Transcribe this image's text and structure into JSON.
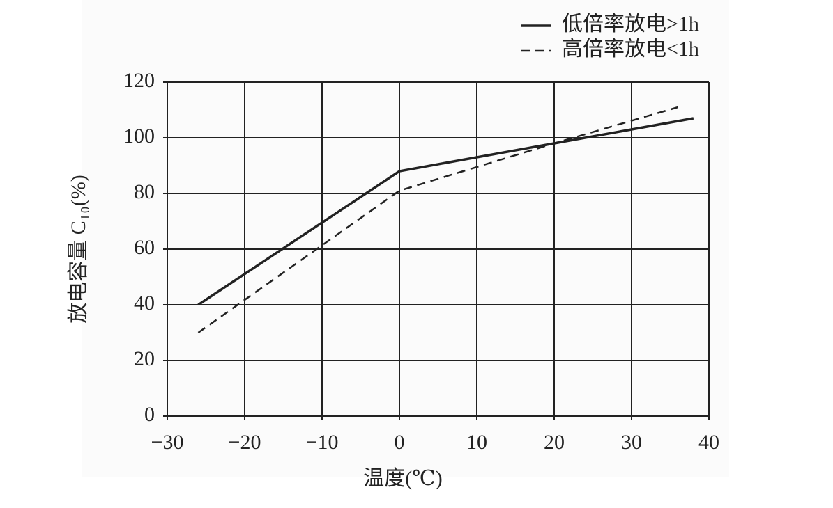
{
  "chart_data": {
    "type": "line",
    "xlabel": "温度(℃)",
    "ylabel": "放电容量 C₁₀(%)",
    "series": [
      {
        "name": "低倍率放电>1h",
        "color": "#222222",
        "dash": "solid",
        "x": [
          -26,
          0,
          38
        ],
        "values": [
          40,
          88,
          107
        ]
      },
      {
        "name": "高倍率放电<1h",
        "color": "#222222",
        "dash": "dashed",
        "x": [
          -26,
          0,
          20,
          36
        ],
        "values": [
          30,
          81,
          98,
          111
        ]
      }
    ],
    "xlim": [
      -30,
      40
    ],
    "xticks": [
      {
        "value": -30,
        "label": "−30"
      },
      {
        "value": -20,
        "label": "−20"
      },
      {
        "value": -10,
        "label": "−10"
      },
      0,
      10,
      20,
      30,
      40
    ],
    "ylim": [
      0,
      120
    ],
    "yticks": [
      0,
      20,
      40,
      60,
      80,
      100,
      120
    ],
    "grid": true,
    "legend": "top-right"
  }
}
